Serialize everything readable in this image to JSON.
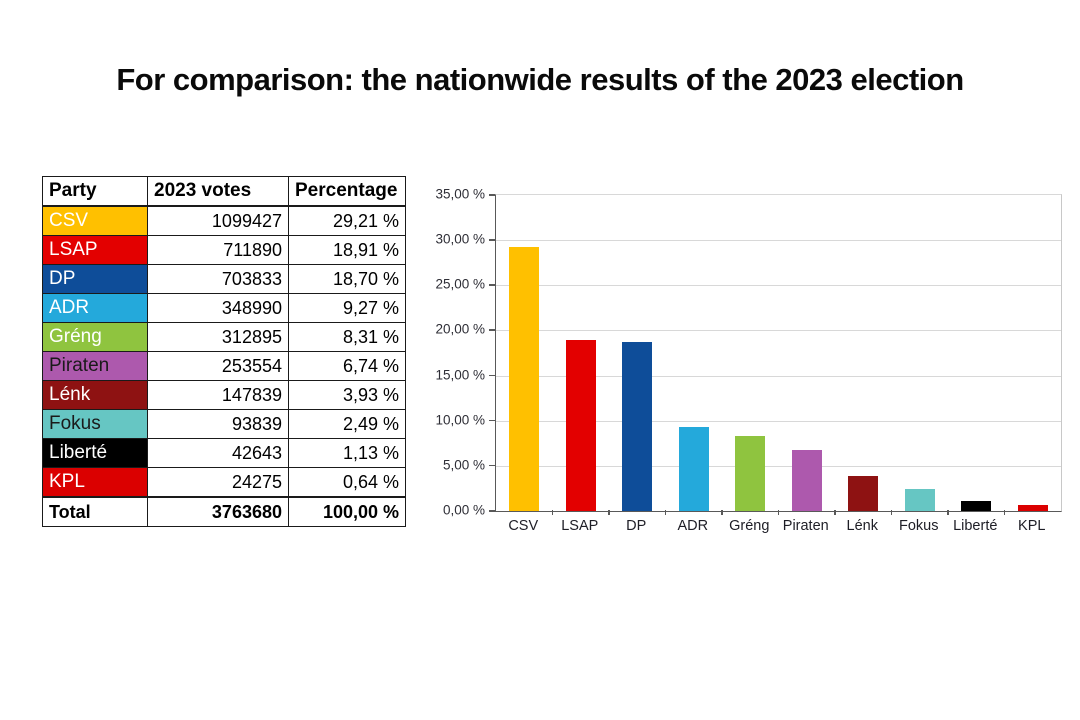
{
  "page": {
    "title": "For comparison: the nationwide results of the 2023 election"
  },
  "table": {
    "headers": [
      "Party",
      "2023 votes",
      "Percentage"
    ],
    "rows": [
      {
        "party": "CSV",
        "votes": "1099427",
        "percentage": "29,21 %",
        "color": "#FFC000",
        "text_color": "#FFFFFF"
      },
      {
        "party": "LSAP",
        "votes": "711890",
        "percentage": "18,91 %",
        "color": "#E30000",
        "text_color": "#FFFFFF"
      },
      {
        "party": "DP",
        "votes": "703833",
        "percentage": "18,70 %",
        "color": "#0E4D99",
        "text_color": "#FFFFFF"
      },
      {
        "party": "ADR",
        "votes": "348990",
        "percentage": "9,27 %",
        "color": "#24A9DB",
        "text_color": "#FFFFFF"
      },
      {
        "party": "Gréng",
        "votes": "312895",
        "percentage": "8,31 %",
        "color": "#8FC43F",
        "text_color": "#FFFFFF"
      },
      {
        "party": "Piraten",
        "votes": "253554",
        "percentage": "6,74 %",
        "color": "#AD59AD",
        "text_color": "#1A1A1A"
      },
      {
        "party": "Lénk",
        "votes": "147839",
        "percentage": "3,93 %",
        "color": "#8E1212",
        "text_color": "#FFFFFF"
      },
      {
        "party": "Fokus",
        "votes": "93839",
        "percentage": "2,49 %",
        "color": "#66C6C3",
        "text_color": "#1A1A1A"
      },
      {
        "party": "Liberté",
        "votes": "42643",
        "percentage": "1,13 %",
        "color": "#000000",
        "text_color": "#FFFFFF"
      },
      {
        "party": "KPL",
        "votes": "24275",
        "percentage": "0,64 %",
        "color": "#DB0000",
        "text_color": "#FFFFFF"
      }
    ],
    "total": {
      "party": "Total",
      "votes": "3763680",
      "percentage": "100,00 %"
    }
  },
  "chart_data": {
    "type": "bar",
    "title": "",
    "xlabel": "",
    "ylabel": "",
    "categories": [
      "CSV",
      "LSAP",
      "DP",
      "ADR",
      "Gréng",
      "Piraten",
      "Lénk",
      "Fokus",
      "Liberté",
      "KPL"
    ],
    "values": [
      29.21,
      18.91,
      18.7,
      9.27,
      8.31,
      6.74,
      3.93,
      2.49,
      1.13,
      0.64
    ],
    "colors": [
      "#FFC000",
      "#E30000",
      "#0E4D99",
      "#24A9DB",
      "#8FC43F",
      "#AD59AD",
      "#8E1212",
      "#66C6C3",
      "#000000",
      "#DB0000"
    ],
    "ylim": [
      0,
      35
    ],
    "ytick_step": 5,
    "ytick_labels": [
      "0,00 %",
      "5,00 %",
      "10,00 %",
      "15,00 %",
      "20,00 %",
      "25,00 %",
      "30,00 %",
      "35,00 %"
    ],
    "grid": true,
    "legend_position": "none"
  }
}
